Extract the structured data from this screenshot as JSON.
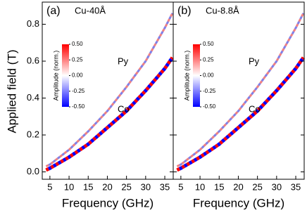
{
  "chart_data": [
    {
      "type": "heatmap",
      "panel_label": "(a)",
      "title": "Cu-40Å",
      "xlabel": "Frequency (GHz)",
      "ylabel": "Applied field (T)",
      "xlim": [
        3,
        37.2
      ],
      "ylim": [
        -0.04,
        0.92
      ],
      "xticks": [
        5,
        10,
        15,
        20,
        25,
        30,
        35
      ],
      "yticks": [
        {
          "value": 0,
          "label": "0.0"
        },
        {
          "value": 0.2,
          "label": "0.2"
        },
        {
          "value": 0.4,
          "label": "0.4"
        },
        {
          "value": 0.6,
          "label": "0.6"
        },
        {
          "value": 0.8,
          "label": "0.8"
        }
      ],
      "show_ytick_labels": true,
      "colorbar_label": "Amplitude (norm.)",
      "colormap": [
        "#0000ff",
        "#ffffff",
        "#ff0000"
      ],
      "clim": [
        -0.5,
        0.5
      ],
      "cticks": [
        {
          "value": 0.5,
          "label": "0.50"
        },
        {
          "value": 0.25,
          "label": "0.25"
        },
        {
          "value": 0,
          "label": "0.00"
        },
        {
          "value": -0.25,
          "label": "-0.25"
        },
        {
          "value": -0.5,
          "label": "-0.50"
        }
      ],
      "series": [
        {
          "name": "Py",
          "color": "#f08080",
          "color2": "#8080e8",
          "x": [
            4,
            5,
            10,
            15,
            20,
            25,
            30,
            35,
            37
          ],
          "values": [
            0.03,
            0.04,
            0.12,
            0.22,
            0.33,
            0.46,
            0.6,
            0.78,
            0.86
          ]
        },
        {
          "name": "Co",
          "color": "#ff0000",
          "color2": "#0000ff",
          "x": [
            4,
            5,
            10,
            15,
            20,
            25,
            30,
            35,
            37
          ],
          "values": [
            0.01,
            0.02,
            0.08,
            0.15,
            0.24,
            0.33,
            0.44,
            0.56,
            0.62
          ]
        }
      ]
    },
    {
      "type": "heatmap",
      "panel_label": "(b)",
      "title": "Cu-8.8Å",
      "xlabel": "Frequency (GHz)",
      "xlim": [
        3,
        37.2
      ],
      "ylim": [
        -0.04,
        0.92
      ],
      "xticks": [
        5,
        10,
        15,
        20,
        25,
        30,
        35
      ],
      "yticks": [
        0,
        0.2,
        0.4,
        0.6,
        0.8
      ],
      "show_ytick_labels": false,
      "colorbar_label": "Amplitude (norm.)",
      "colormap": [
        "#0000ff",
        "#ffffff",
        "#ff0000"
      ],
      "clim": [
        -0.5,
        0.5
      ],
      "cticks": [
        {
          "value": 0.5,
          "label": "0.50"
        },
        {
          "value": 0.25,
          "label": "0.25"
        },
        {
          "value": 0,
          "label": "0.00"
        },
        {
          "value": -0.25,
          "label": "-0.25"
        },
        {
          "value": -0.5,
          "label": "-0.50"
        }
      ],
      "series": [
        {
          "name": "Py",
          "color": "#f08080",
          "color2": "#8080e8",
          "x": [
            4,
            5,
            10,
            15,
            20,
            25,
            30,
            35,
            37
          ],
          "values": [
            0.03,
            0.04,
            0.12,
            0.22,
            0.33,
            0.46,
            0.6,
            0.78,
            0.86
          ]
        },
        {
          "name": "Co",
          "color": "#ff0000",
          "color2": "#0000ff",
          "x": [
            4,
            5,
            10,
            15,
            20,
            25,
            30,
            35,
            37
          ],
          "values": [
            0.01,
            0.02,
            0.08,
            0.15,
            0.24,
            0.33,
            0.44,
            0.56,
            0.62
          ]
        }
      ]
    }
  ]
}
